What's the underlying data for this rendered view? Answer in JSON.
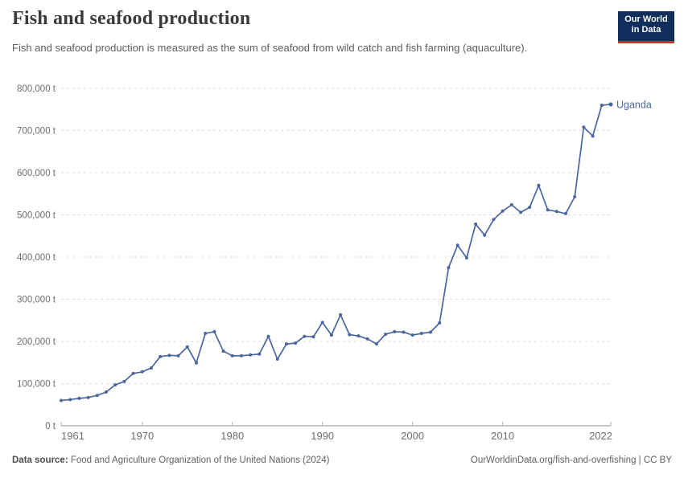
{
  "header": {
    "title": "Fish and seafood production",
    "subtitle": "Fish and seafood production is measured as the sum of seafood from wild catch and fish farming (aquaculture).",
    "logo": {
      "line1": "Our World",
      "line2": "in Data"
    }
  },
  "footer": {
    "source_label": "Data source:",
    "source_text": " Food and Agriculture Organization of the United Nations (2024)",
    "link_text": "OurWorldinData.org/fish-and-overfishing | CC BY"
  },
  "colors": {
    "line": "#4a669f",
    "entity_label": "#4a669f",
    "grid": "#dcdcdc",
    "axis": "#8f8f8f",
    "tick": "#b3b3b3",
    "logo_bg": "#0f2e5c",
    "logo_accent": "#d02f2f"
  },
  "chart_data": {
    "type": "line",
    "title": "Fish and seafood production",
    "unit": "t",
    "xlim": [
      1961,
      2022
    ],
    "ylim": [
      0,
      800000
    ],
    "grid": "dashed-horizontal",
    "legend_position": "end-of-line",
    "xticks": [
      1961,
      1970,
      1980,
      1990,
      2000,
      2010,
      2022
    ],
    "xtick_labels": [
      "1961",
      "1970",
      "1980",
      "1990",
      "2000",
      "2010",
      "2022"
    ],
    "yticks": [
      0,
      100000,
      200000,
      300000,
      400000,
      500000,
      600000,
      700000,
      800000
    ],
    "ytick_labels": [
      "0 t",
      "100,000 t",
      "200,000 t",
      "300,000 t",
      "400,000 t",
      "500,000 t",
      "600,000 t",
      "700,000 t",
      "800,000 t"
    ],
    "x": [
      1961,
      1962,
      1963,
      1964,
      1965,
      1966,
      1967,
      1968,
      1969,
      1970,
      1971,
      1972,
      1973,
      1974,
      1975,
      1976,
      1977,
      1978,
      1979,
      1980,
      1981,
      1982,
      1983,
      1984,
      1985,
      1986,
      1987,
      1988,
      1989,
      1990,
      1991,
      1992,
      1993,
      1994,
      1995,
      1996,
      1997,
      1998,
      1999,
      2000,
      2001,
      2002,
      2003,
      2004,
      2005,
      2006,
      2007,
      2008,
      2009,
      2010,
      2011,
      2012,
      2013,
      2014,
      2015,
      2016,
      2017,
      2018,
      2019,
      2020,
      2021,
      2022
    ],
    "series": [
      {
        "name": "Uganda",
        "values": [
          60000,
          62000,
          65000,
          67000,
          72000,
          80000,
          97000,
          105000,
          124000,
          128000,
          137000,
          164000,
          167000,
          166000,
          187000,
          149000,
          219000,
          223000,
          177000,
          166000,
          166000,
          168000,
          170000,
          212000,
          158000,
          194000,
          196000,
          212000,
          211000,
          245000,
          215000,
          263000,
          216000,
          213000,
          206000,
          194000,
          217000,
          223000,
          222000,
          215000,
          219000,
          222000,
          244000,
          375000,
          428000,
          398000,
          478000,
          452000,
          489000,
          509000,
          524000,
          506000,
          518000,
          570000,
          512000,
          508000,
          503000,
          543000,
          708000,
          687000,
          760000,
          762000
        ]
      }
    ]
  }
}
